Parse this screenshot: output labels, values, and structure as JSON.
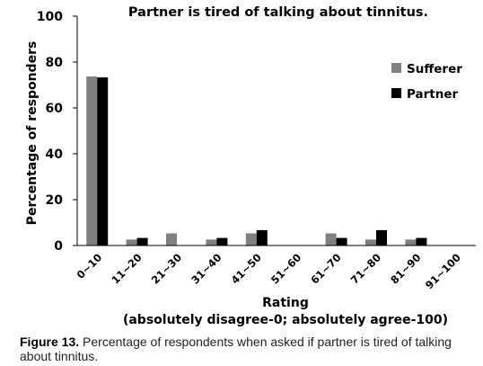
{
  "chart_data": {
    "type": "bar",
    "title": "Partner is tired of talking about tinnitus.",
    "xlabel": "Rating",
    "xlabel_sub": "(absolutely disagree-0; absolutely agree-100)",
    "ylabel": "Percentage of responders",
    "ylim": [
      0,
      100
    ],
    "yticks": [
      "0",
      "20",
      "40",
      "60",
      "80",
      "100"
    ],
    "categories": [
      "0~10",
      "11~20",
      "21~30",
      "31~40",
      "41~50",
      "51~60",
      "61~70",
      "71~80",
      "81~90",
      "91~100"
    ],
    "series": [
      {
        "name": "Sufferer",
        "color": "#808080",
        "values": [
          73.7,
          2.6,
          5.3,
          2.6,
          5.3,
          0,
          5.3,
          2.6,
          2.6,
          0
        ]
      },
      {
        "name": "Partner",
        "color": "#000000",
        "values": [
          73.3,
          3.3,
          0,
          3.3,
          6.7,
          0,
          3.3,
          6.7,
          3.3,
          0
        ]
      }
    ],
    "grid": false,
    "legend_position": "top-right"
  },
  "caption": {
    "label": "Figure 13.",
    "text": " Percentage of respondents when asked if partner is tired of talking about tinnitus."
  }
}
